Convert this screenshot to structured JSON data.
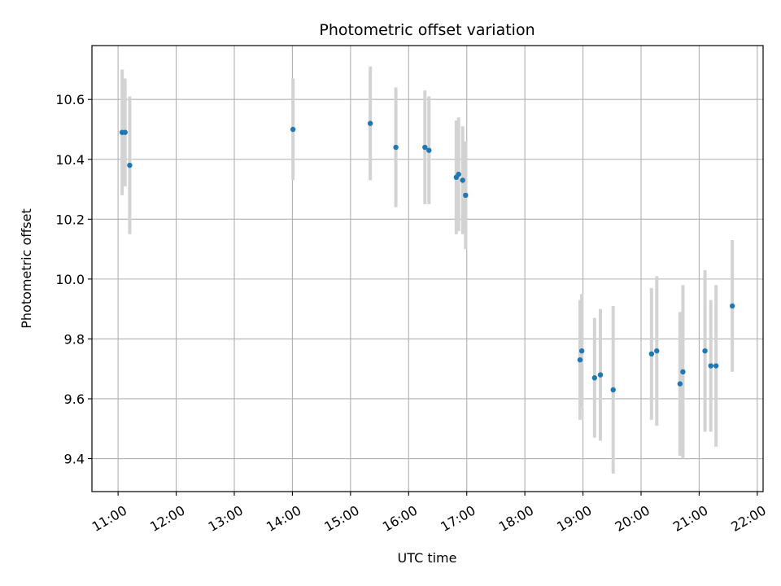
{
  "chart_data": {
    "type": "scatter",
    "title": "Photometric offset variation",
    "xlabel": "UTC time",
    "ylabel": "Photometric offset",
    "x_unit": "UTC hours of day",
    "xlim": [
      10.55,
      22.1
    ],
    "ylim": [
      9.29,
      10.78
    ],
    "x_ticks": [
      {
        "value": 11,
        "label": "11:00"
      },
      {
        "value": 12,
        "label": "12:00"
      },
      {
        "value": 13,
        "label": "13:00"
      },
      {
        "value": 14,
        "label": "14:00"
      },
      {
        "value": 15,
        "label": "15:00"
      },
      {
        "value": 16,
        "label": "16:00"
      },
      {
        "value": 17,
        "label": "17:00"
      },
      {
        "value": 18,
        "label": "18:00"
      },
      {
        "value": 19,
        "label": "19:00"
      },
      {
        "value": 20,
        "label": "20:00"
      },
      {
        "value": 21,
        "label": "21:00"
      },
      {
        "value": 22,
        "label": "22:00"
      }
    ],
    "y_ticks": [
      {
        "value": 9.4,
        "label": "9.4"
      },
      {
        "value": 9.6,
        "label": "9.6"
      },
      {
        "value": 9.8,
        "label": "9.8"
      },
      {
        "value": 10.0,
        "label": "10.0"
      },
      {
        "value": 10.2,
        "label": "10.2"
      },
      {
        "value": 10.4,
        "label": "10.4"
      },
      {
        "value": 10.6,
        "label": "10.6"
      }
    ],
    "grid": true,
    "point_color": "#1f77b4",
    "errorbar_color": "#d3d3d3",
    "points": [
      {
        "x": 11.07,
        "y": 10.49,
        "err": 0.21
      },
      {
        "x": 11.12,
        "y": 10.49,
        "err": 0.18
      },
      {
        "x": 11.2,
        "y": 10.38,
        "err": 0.23
      },
      {
        "x": 14.01,
        "y": 10.5,
        "err": 0.17
      },
      {
        "x": 15.34,
        "y": 10.52,
        "err": 0.19
      },
      {
        "x": 15.78,
        "y": 10.44,
        "err": 0.2
      },
      {
        "x": 16.28,
        "y": 10.44,
        "err": 0.19
      },
      {
        "x": 16.35,
        "y": 10.43,
        "err": 0.18
      },
      {
        "x": 16.82,
        "y": 10.34,
        "err": 0.19
      },
      {
        "x": 16.86,
        "y": 10.35,
        "err": 0.19
      },
      {
        "x": 16.93,
        "y": 10.33,
        "err": 0.18
      },
      {
        "x": 16.98,
        "y": 10.28,
        "err": 0.18
      },
      {
        "x": 18.95,
        "y": 9.73,
        "err": 0.2
      },
      {
        "x": 18.98,
        "y": 9.76,
        "err": 0.19
      },
      {
        "x": 19.2,
        "y": 9.67,
        "err": 0.2
      },
      {
        "x": 19.3,
        "y": 9.68,
        "err": 0.22
      },
      {
        "x": 19.52,
        "y": 9.63,
        "err": 0.28
      },
      {
        "x": 20.18,
        "y": 9.75,
        "err": 0.22
      },
      {
        "x": 20.27,
        "y": 9.76,
        "err": 0.25
      },
      {
        "x": 20.67,
        "y": 9.65,
        "err": 0.24
      },
      {
        "x": 20.72,
        "y": 9.69,
        "err": 0.29
      },
      {
        "x": 21.1,
        "y": 9.76,
        "err": 0.27
      },
      {
        "x": 21.2,
        "y": 9.71,
        "err": 0.22
      },
      {
        "x": 21.29,
        "y": 9.71,
        "err": 0.27
      },
      {
        "x": 21.57,
        "y": 9.91,
        "err": 0.22
      }
    ]
  }
}
